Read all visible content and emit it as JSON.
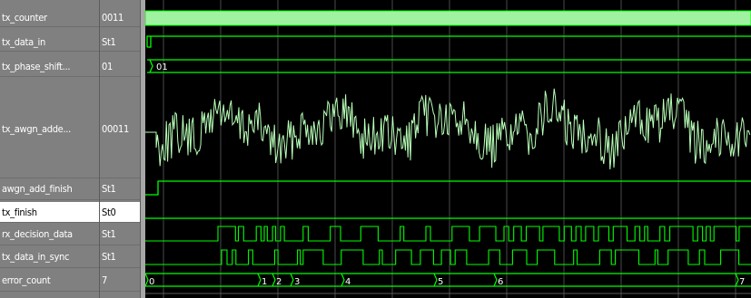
{
  "signals": [
    {
      "name": "tx_counter",
      "value": "0011"
    },
    {
      "name": "tx_data_in",
      "value": "St1"
    },
    {
      "name": "tx_phase_shift...",
      "value": "01"
    },
    {
      "name": "tx_awgn_adde...",
      "value": "00011"
    },
    {
      "name": "awgn_add_finish",
      "value": "St1"
    },
    {
      "name": "tx_finish",
      "value": "St0"
    },
    {
      "name": "rx_decision_data",
      "value": "St1"
    },
    {
      "name": "tx_data_in_sync",
      "value": "St1"
    },
    {
      "name": "error_count",
      "value": "7"
    }
  ],
  "waveform": {
    "phase_shift_bus_label": "01",
    "error_count_labels": [
      "0",
      "1",
      "2",
      "3",
      "4",
      "5",
      "6",
      "7"
    ]
  },
  "colors": {
    "trace": "#00ff00",
    "analog_trace": "#b8ffb8",
    "selected_row_bg": "#ffffff",
    "panel_bg": "#808080",
    "grid": "#4a4a4a"
  }
}
